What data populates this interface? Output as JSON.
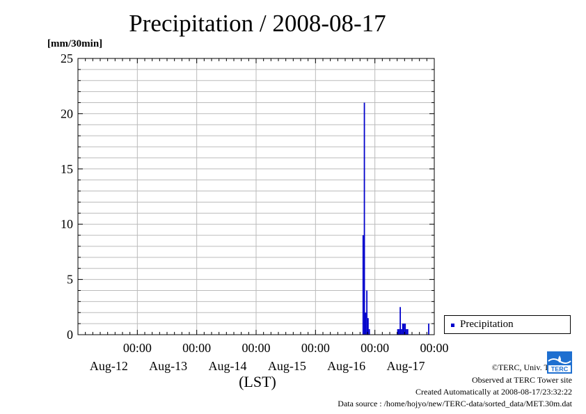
{
  "chart_data": {
    "type": "bar",
    "title": "Precipitation / 2008-08-17",
    "ylabel": "[mm/30min]",
    "xlabel": "(LST)",
    "ylim": [
      0,
      25
    ],
    "yticks": [
      0,
      5,
      10,
      15,
      20,
      25
    ],
    "xlim": [
      "2008-08-11 00:00",
      "2008-08-17 00:00"
    ],
    "xticks": [
      {
        "date": "2008-08-12 00:00",
        "time_label": "00:00",
        "date_label": "Aug-12"
      },
      {
        "date": "2008-08-13 00:00",
        "time_label": "00:00",
        "date_label": "Aug-13"
      },
      {
        "date": "2008-08-14 00:00",
        "time_label": "00:00",
        "date_label": "Aug-14"
      },
      {
        "date": "2008-08-15 00:00",
        "time_label": "00:00",
        "date_label": "Aug-15"
      },
      {
        "date": "2008-08-16 00:00",
        "time_label": "00:00",
        "date_label": "Aug-16"
      },
      {
        "date": "2008-08-17 00:00",
        "time_label": "00:00",
        "date_label": "Aug-17"
      }
    ],
    "grid": true,
    "legend_position": "right",
    "series": [
      {
        "name": "Precipitation",
        "color": "#0000cc",
        "points": [
          {
            "x": "2008-08-15 19:00",
            "y": 9.0
          },
          {
            "x": "2008-08-15 19:30",
            "y": 21.0
          },
          {
            "x": "2008-08-15 20:00",
            "y": 2.0
          },
          {
            "x": "2008-08-15 20:30",
            "y": 4.0
          },
          {
            "x": "2008-08-15 21:00",
            "y": 1.5
          },
          {
            "x": "2008-08-15 21:30",
            "y": 0.5
          },
          {
            "x": "2008-08-16 09:00",
            "y": 0.5
          },
          {
            "x": "2008-08-16 09:30",
            "y": 0.5
          },
          {
            "x": "2008-08-16 10:00",
            "y": 2.5
          },
          {
            "x": "2008-08-16 10:30",
            "y": 0.5
          },
          {
            "x": "2008-08-16 11:00",
            "y": 1.0
          },
          {
            "x": "2008-08-16 11:30",
            "y": 1.0
          },
          {
            "x": "2008-08-16 12:00",
            "y": 1.0
          },
          {
            "x": "2008-08-16 12:30",
            "y": 0.5
          },
          {
            "x": "2008-08-16 13:00",
            "y": 0.5
          },
          {
            "x": "2008-08-16 21:30",
            "y": 1.0
          }
        ]
      }
    ]
  },
  "credits": {
    "copyright": "©TERC, Univ. Tsukuba",
    "site": "Observed at TERC Tower site",
    "created": "Created Automatically at 2008-08-17/23:32:22",
    "source": "Data source : /home/hojyo/new/TERC-data/sorted_data/MET.30m.dat",
    "logo_text": "TERC"
  }
}
